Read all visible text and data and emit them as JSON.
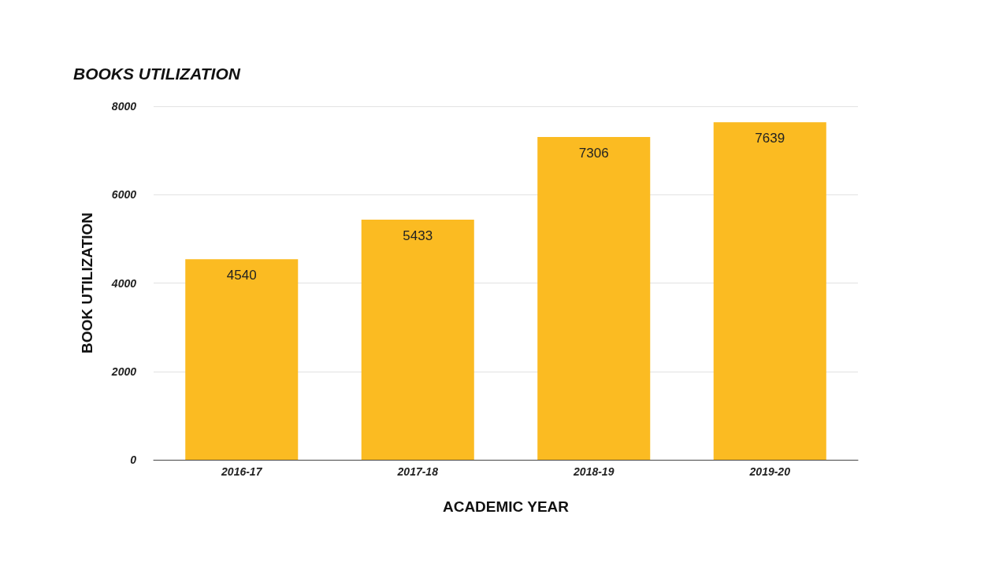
{
  "chart_data": {
    "type": "bar",
    "title": "BOOKS UTILIZATION",
    "xlabel": "ACADEMIC YEAR",
    "ylabel": "BOOK UTILIZATION",
    "categories": [
      "2016-17",
      "2017-18",
      "2018-19",
      "2019-20"
    ],
    "values": [
      4540,
      5433,
      7306,
      7639
    ],
    "color": "#fbbb22",
    "ylim": [
      0,
      8000
    ],
    "yticks": [
      0,
      2000,
      4000,
      6000,
      8000
    ],
    "grid": "y",
    "data_labels": true
  }
}
